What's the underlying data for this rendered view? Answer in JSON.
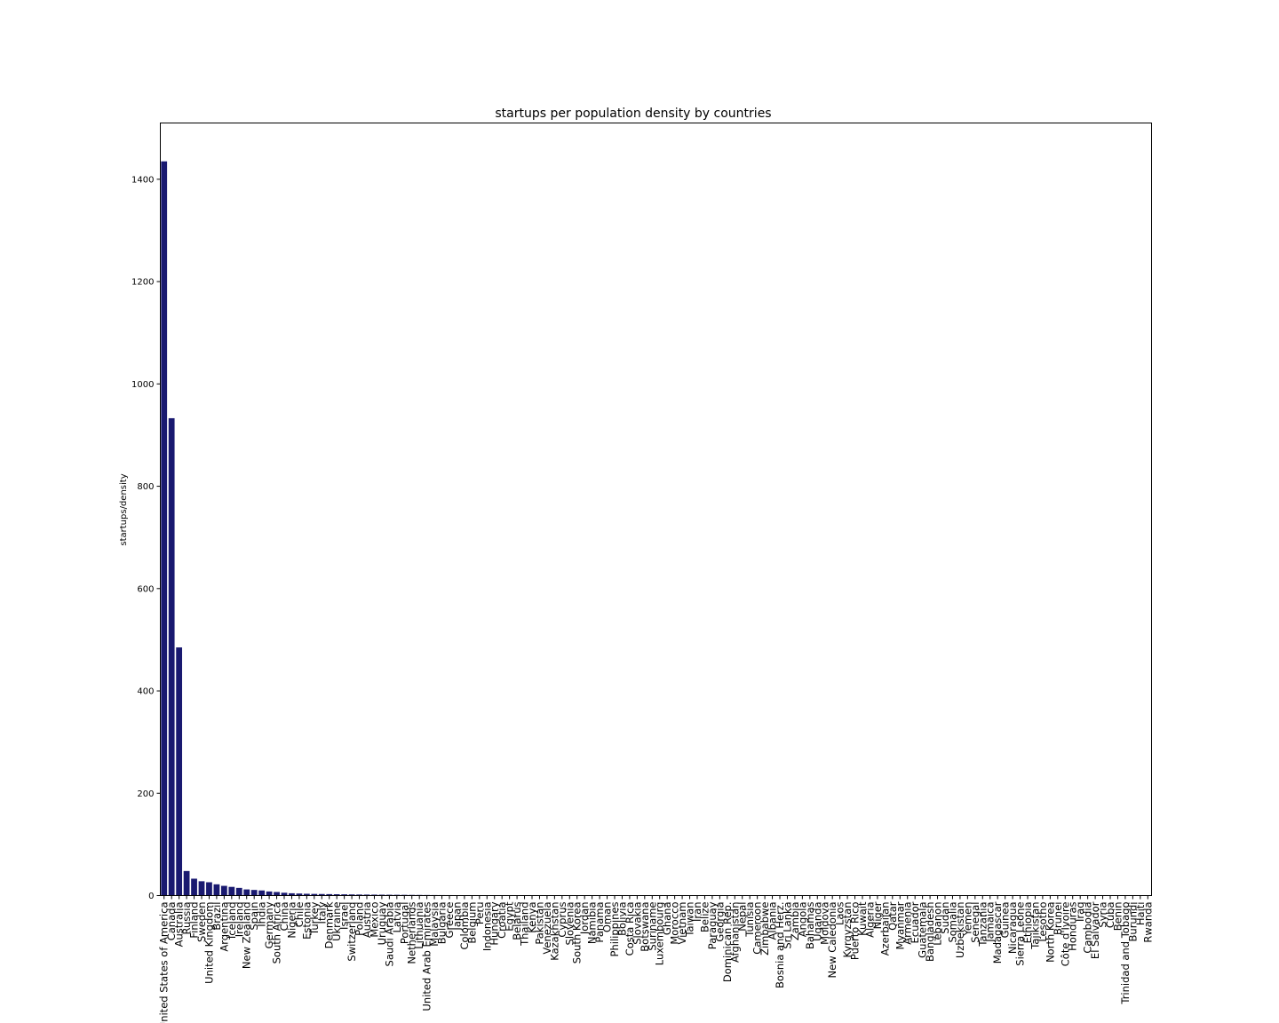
{
  "chart_data": {
    "type": "bar",
    "title": "startups per population density by countries",
    "xlabel": "",
    "ylabel": "startups/density",
    "ylim": [
      0,
      1510
    ],
    "yticks": [
      0,
      200,
      400,
      600,
      800,
      1000,
      1200,
      1400
    ],
    "grid": false,
    "legend": "none",
    "bar_color": "#191970",
    "categories": [
      "United States of America",
      "Canada",
      "Australia",
      "Russia",
      "Finland",
      "Sweden",
      "United Kingdom",
      "Brazil",
      "Argentina",
      "Iceland",
      "Ireland",
      "New Zealand",
      "Spain",
      "India",
      "Germany",
      "South Africa",
      "China",
      "Nigeria",
      "Chile",
      "Estonia",
      "Turkey",
      "Italy",
      "Denmark",
      "Ukraine",
      "Israel",
      "Switzerland",
      "Poland",
      "Austria",
      "Mexico",
      "Uruguay",
      "Saudi Arabia",
      "Latvia",
      "Portugal",
      "Netherlands",
      "Lithuania",
      "United Arab Emirates",
      "Malaysia",
      "Bulgaria",
      "Greece",
      "Japan",
      "Colombia",
      "Belgium",
      "Peru",
      "Indonesia",
      "Hungary",
      "Croatia",
      "Egypt",
      "Belarus",
      "Thailand",
      "Kenya",
      "Pakistan",
      "Venezuela",
      "Kazakhstan",
      "Cyprus",
      "Slovenia",
      "South Korea",
      "Jordan",
      "Namibia",
      "Panama",
      "Oman",
      "Philippines",
      "Bolivia",
      "Costa Rica",
      "Slovakia",
      "Botswana",
      "Suriname",
      "Luxembourg",
      "Ghana",
      "Morocco",
      "Vietnam",
      "Taiwan",
      "Iran",
      "Belize",
      "Paraguay",
      "Georgia",
      "Dominican Rep.",
      "Afghanistan",
      "Nepal",
      "Tunisia",
      "Cameroon",
      "Zimbabwe",
      "Albania",
      "Bosnia and Herz.",
      "Sri Lanka",
      "Zambia",
      "Angola",
      "Bahamas",
      "Uganda",
      "Moldova",
      "New Caledonia",
      "Laos",
      "Kyrgyzstan",
      "Puerto Rico",
      "Kuwait",
      "Algeria",
      "Niger",
      "Azerbaijan",
      "Qatar",
      "Myanmar",
      "Armenia",
      "Ecuador",
      "Guatemala",
      "Bangladesh",
      "Lebanon",
      "Sudan",
      "Somalia",
      "Uzbekistan",
      "Yemen",
      "Senegal",
      "Tanzania",
      "Jamaica",
      "Madagascar",
      "Guinea",
      "Nicaragua",
      "Sierra Leone",
      "Ethiopia",
      "Tajikistan",
      "Lesotho",
      "North Korea",
      "Brunei",
      "Côte d'Ivoire",
      "Honduras",
      "Iraq",
      "Cambodia",
      "El Salvador",
      "Syria",
      "Cuba",
      "Benin",
      "Trinidad and Tobago",
      "Burundi",
      "Haiti",
      "Rwanda"
    ],
    "values": [
      1435,
      933,
      485,
      48,
      33,
      28,
      26,
      22,
      19,
      17,
      15,
      12,
      11,
      10,
      8,
      7,
      5.5,
      4.5,
      4,
      3.5,
      3.2,
      3,
      2.8,
      2.6,
      2.4,
      2.2,
      2,
      1.9,
      1.8,
      1.7,
      1.6,
      1.5,
      1.4,
      1.3,
      1.2,
      1.1,
      1.0,
      0.95,
      0.9,
      0.85,
      0.8,
      0.75,
      0.7,
      0.6,
      0.55,
      0.5,
      0.45,
      0.4,
      0.35,
      0.3,
      0.28,
      0.26,
      0.24,
      0.22,
      0.2,
      0.19,
      0.18,
      0.17,
      0.16,
      0.15,
      0.14,
      0.13,
      0.12,
      0.11,
      0.1,
      0.1,
      0.09,
      0.09,
      0.08,
      0.08,
      0.07,
      0.07,
      0.06,
      0.06,
      0.05,
      0.05,
      0.05,
      0.04,
      0.04,
      0.04,
      0.03,
      0.03,
      0.03,
      0.03,
      0.02,
      0.02,
      0.02,
      0.02,
      0.02,
      0.02,
      0.01,
      0.01,
      0.01,
      0.01,
      0.01,
      0.01,
      0.01,
      0.01,
      0.01,
      0.01,
      0.01,
      0.01,
      0.01,
      0.01,
      0.01,
      0.01,
      0.01,
      0.01,
      0.01,
      0.01,
      0.005,
      0.005,
      0.005,
      0.005,
      0.005,
      0.005,
      0.005,
      0.005,
      0.005,
      0.005,
      0.005,
      0.005,
      0.005,
      0.005,
      0.005,
      0.005,
      0.005,
      0.005,
      0.005,
      0.005,
      0.005,
      0.005
    ]
  }
}
